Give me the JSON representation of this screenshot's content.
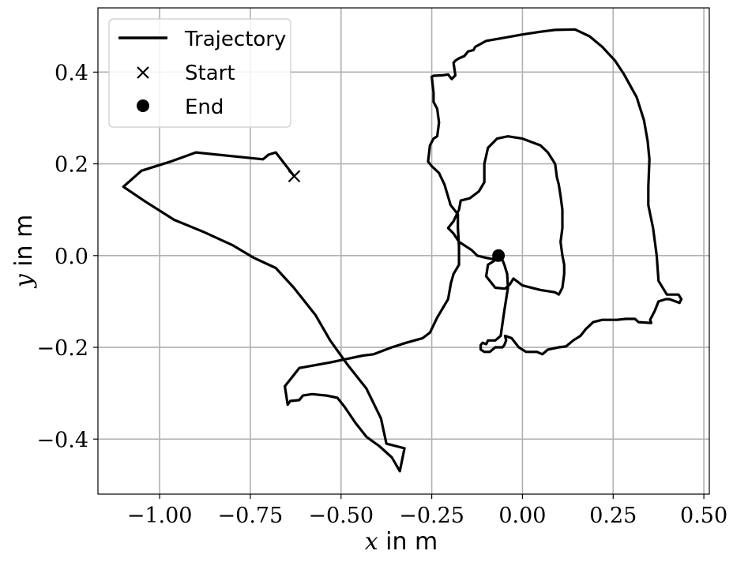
{
  "chart_data": {
    "type": "line",
    "xlabel_var": "x",
    "xlabel_unit": " in m",
    "ylabel_var": "y",
    "ylabel_unit": " in m",
    "xlim": [
      -1.17,
      0.515
    ],
    "ylim": [
      -0.52,
      0.54
    ],
    "grid": true,
    "legend_placement": "top-left",
    "x_ticks": [
      -1.0,
      -0.75,
      -0.5,
      -0.25,
      0.0,
      0.25,
      0.5
    ],
    "x_tick_labels": [
      "−1.00",
      "−0.75",
      "−0.50",
      "−0.25",
      "0.00",
      "0.25",
      "0.50"
    ],
    "y_ticks": [
      0.4,
      0.2,
      0.0,
      -0.2,
      -0.4
    ],
    "y_tick_labels": [
      "0.4",
      "0.2",
      "0.0",
      "−0.2",
      "−0.4"
    ],
    "series": [
      {
        "name": "Trajectory",
        "color": "#000000",
        "points": [
          [
            -0.629,
            0.173
          ],
          [
            -0.68,
            0.225
          ],
          [
            -0.7,
            0.22
          ],
          [
            -0.715,
            0.21
          ],
          [
            -0.9,
            0.225
          ],
          [
            -0.97,
            0.205
          ],
          [
            -1.05,
            0.185
          ],
          [
            -1.1,
            0.15
          ],
          [
            -1.04,
            0.118
          ],
          [
            -0.96,
            0.078
          ],
          [
            -0.88,
            0.052
          ],
          [
            -0.8,
            0.023
          ],
          [
            -0.74,
            -0.005
          ],
          [
            -0.68,
            -0.027
          ],
          [
            -0.63,
            -0.07
          ],
          [
            -0.57,
            -0.13
          ],
          [
            -0.53,
            -0.185
          ],
          [
            -0.48,
            -0.24
          ],
          [
            -0.43,
            -0.29
          ],
          [
            -0.39,
            -0.355
          ],
          [
            -0.375,
            -0.41
          ],
          [
            -0.325,
            -0.42
          ],
          [
            -0.338,
            -0.47
          ],
          [
            -0.36,
            -0.44
          ],
          [
            -0.395,
            -0.415
          ],
          [
            -0.43,
            -0.395
          ],
          [
            -0.46,
            -0.365
          ],
          [
            -0.49,
            -0.33
          ],
          [
            -0.51,
            -0.31
          ],
          [
            -0.54,
            -0.305
          ],
          [
            -0.58,
            -0.302
          ],
          [
            -0.605,
            -0.305
          ],
          [
            -0.615,
            -0.315
          ],
          [
            -0.64,
            -0.317
          ],
          [
            -0.647,
            -0.325
          ],
          [
            -0.65,
            -0.31
          ],
          [
            -0.655,
            -0.285
          ],
          [
            -0.64,
            -0.27
          ],
          [
            -0.615,
            -0.245
          ],
          [
            -0.53,
            -0.233
          ],
          [
            -0.44,
            -0.218
          ],
          [
            -0.41,
            -0.215
          ],
          [
            -0.36,
            -0.2
          ],
          [
            -0.32,
            -0.19
          ],
          [
            -0.275,
            -0.18
          ],
          [
            -0.255,
            -0.168
          ],
          [
            -0.235,
            -0.135
          ],
          [
            -0.205,
            -0.095
          ],
          [
            -0.197,
            -0.06
          ],
          [
            -0.19,
            -0.04
          ],
          [
            -0.175,
            -0.02
          ],
          [
            -0.175,
            0.02
          ],
          [
            -0.178,
            0.06
          ],
          [
            -0.178,
            0.09
          ],
          [
            -0.198,
            0.11
          ],
          [
            -0.215,
            0.155
          ],
          [
            -0.23,
            0.18
          ],
          [
            -0.25,
            0.195
          ],
          [
            -0.26,
            0.205
          ],
          [
            -0.255,
            0.24
          ],
          [
            -0.245,
            0.255
          ],
          [
            -0.235,
            0.26
          ],
          [
            -0.23,
            0.29
          ],
          [
            -0.235,
            0.32
          ],
          [
            -0.245,
            0.335
          ],
          [
            -0.245,
            0.355
          ],
          [
            -0.25,
            0.39
          ],
          [
            -0.245,
            0.392
          ],
          [
            -0.22,
            0.393
          ],
          [
            -0.205,
            0.395
          ],
          [
            -0.195,
            0.385
          ],
          [
            -0.185,
            0.393
          ],
          [
            -0.19,
            0.42
          ],
          [
            -0.185,
            0.425
          ],
          [
            -0.175,
            0.43
          ],
          [
            -0.16,
            0.435
          ],
          [
            -0.15,
            0.445
          ],
          [
            -0.135,
            0.448
          ],
          [
            -0.13,
            0.455
          ],
          [
            -0.1,
            0.468
          ],
          [
            -0.05,
            0.475
          ],
          [
            0.0,
            0.482
          ],
          [
            0.05,
            0.488
          ],
          [
            0.09,
            0.492
          ],
          [
            0.145,
            0.493
          ],
          [
            0.185,
            0.478
          ],
          [
            0.22,
            0.455
          ],
          [
            0.255,
            0.425
          ],
          [
            0.28,
            0.395
          ],
          [
            0.315,
            0.345
          ],
          [
            0.335,
            0.295
          ],
          [
            0.345,
            0.25
          ],
          [
            0.35,
            0.21
          ],
          [
            0.347,
            0.15
          ],
          [
            0.347,
            0.11
          ],
          [
            0.36,
            0.06
          ],
          [
            0.37,
            0.0
          ],
          [
            0.375,
            -0.055
          ],
          [
            0.398,
            -0.085
          ],
          [
            0.43,
            -0.085
          ],
          [
            0.438,
            -0.095
          ],
          [
            0.433,
            -0.103
          ],
          [
            0.405,
            -0.095
          ],
          [
            0.395,
            -0.095
          ],
          [
            0.375,
            -0.1
          ],
          [
            0.365,
            -0.12
          ],
          [
            0.352,
            -0.14
          ],
          [
            0.355,
            -0.147
          ],
          [
            0.32,
            -0.145
          ],
          [
            0.31,
            -0.138
          ],
          [
            0.285,
            -0.138
          ],
          [
            0.26,
            -0.14
          ],
          [
            0.22,
            -0.14
          ],
          [
            0.195,
            -0.145
          ],
          [
            0.175,
            -0.16
          ],
          [
            0.16,
            -0.175
          ],
          [
            0.14,
            -0.185
          ],
          [
            0.12,
            -0.198
          ],
          [
            0.1,
            -0.2
          ],
          [
            0.07,
            -0.205
          ],
          [
            0.055,
            -0.215
          ],
          [
            0.04,
            -0.21
          ],
          [
            0.01,
            -0.21
          ],
          [
            -0.01,
            -0.2
          ],
          [
            -0.03,
            -0.18
          ],
          [
            -0.048,
            -0.175
          ],
          [
            -0.045,
            -0.185
          ],
          [
            -0.05,
            -0.195
          ],
          [
            -0.055,
            -0.2
          ],
          [
            -0.075,
            -0.2
          ],
          [
            -0.09,
            -0.21
          ],
          [
            -0.105,
            -0.21
          ],
          [
            -0.115,
            -0.205
          ],
          [
            -0.115,
            -0.195
          ],
          [
            -0.11,
            -0.19
          ],
          [
            -0.1,
            -0.193
          ],
          [
            -0.095,
            -0.185
          ],
          [
            -0.075,
            -0.185
          ],
          [
            -0.06,
            -0.175
          ],
          [
            -0.05,
            -0.12
          ],
          [
            -0.04,
            -0.07
          ],
          [
            -0.042,
            -0.04
          ],
          [
            -0.05,
            -0.02
          ],
          [
            -0.06,
            0.0
          ],
          [
            -0.066,
            0.0
          ],
          [
            -0.075,
            -0.01
          ],
          [
            -0.095,
            -0.02
          ],
          [
            -0.1,
            -0.045
          ],
          [
            -0.075,
            -0.07
          ],
          [
            -0.048,
            -0.072
          ],
          [
            -0.035,
            -0.063
          ],
          [
            -0.025,
            -0.05
          ],
          [
            0.0,
            -0.065
          ],
          [
            0.05,
            -0.075
          ],
          [
            0.09,
            -0.08
          ],
          [
            0.1,
            -0.085
          ],
          [
            0.11,
            -0.07
          ],
          [
            0.115,
            -0.04
          ],
          [
            0.115,
            -0.02
          ],
          [
            0.11,
            0.0
          ],
          [
            0.105,
            0.03
          ],
          [
            0.11,
            0.06
          ],
          [
            0.11,
            0.1
          ],
          [
            0.105,
            0.13
          ],
          [
            0.1,
            0.155
          ],
          [
            0.095,
            0.17
          ],
          [
            0.09,
            0.2
          ],
          [
            0.07,
            0.225
          ],
          [
            0.05,
            0.24
          ],
          [
            0.0,
            0.255
          ],
          [
            -0.04,
            0.26
          ],
          [
            -0.07,
            0.255
          ],
          [
            -0.095,
            0.235
          ],
          [
            -0.105,
            0.2
          ],
          [
            -0.105,
            0.16
          ],
          [
            -0.12,
            0.14
          ],
          [
            -0.145,
            0.125
          ],
          [
            -0.17,
            0.12
          ],
          [
            -0.175,
            0.1
          ],
          [
            -0.19,
            0.075
          ],
          [
            -0.205,
            0.06
          ],
          [
            -0.19,
            0.048
          ],
          [
            -0.175,
            0.03
          ],
          [
            -0.14,
            0.012
          ],
          [
            -0.125,
            0.0
          ],
          [
            -0.1,
            -0.005
          ],
          [
            -0.065,
            -0.01
          ]
        ]
      }
    ],
    "markers": [
      {
        "name": "Start",
        "symbol": "x",
        "point": [
          -0.629,
          0.173
        ]
      },
      {
        "name": "End",
        "symbol": "circle",
        "point": [
          -0.066,
          0.0
        ]
      }
    ],
    "legend": [
      {
        "label": "Trajectory",
        "symbol": "line"
      },
      {
        "label": "Start",
        "symbol": "x"
      },
      {
        "label": "End",
        "symbol": "circle"
      }
    ]
  }
}
